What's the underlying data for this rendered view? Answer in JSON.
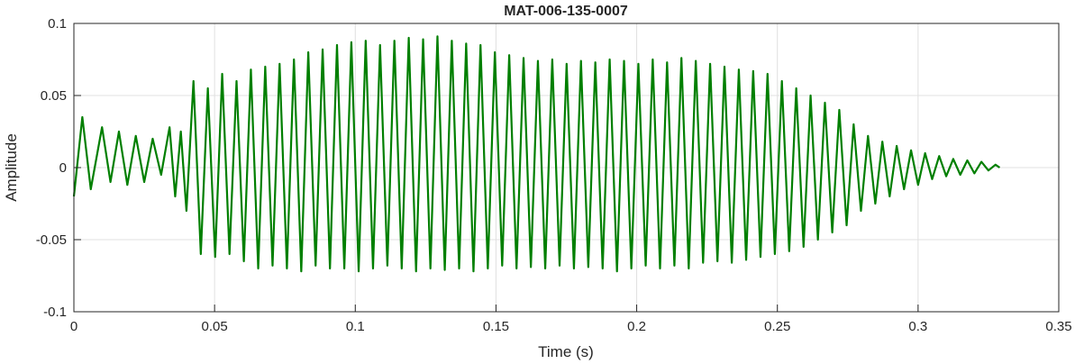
{
  "chart_data": {
    "type": "line",
    "title": "MAT-006-135-0007",
    "xlabel": "Time (s)",
    "ylabel": "Amplitude",
    "color": "#007f00",
    "grid": true,
    "xlim": [
      0,
      0.35
    ],
    "xticks": [
      0,
      0.05,
      0.1,
      0.15,
      0.2,
      0.25,
      0.3,
      0.35
    ],
    "ylim": [
      -0.1,
      0.1
    ],
    "yticks": [
      -0.1,
      -0.05,
      0,
      0.05,
      0.1
    ],
    "x": [
      0,
      0.003,
      0.006,
      0.01,
      0.013,
      0.016,
      0.019,
      0.022,
      0.025,
      0.028,
      0.031,
      0.034,
      0.036,
      0.038,
      0.04,
      0.0425,
      0.0451,
      0.0476,
      0.0502,
      0.0527,
      0.0553,
      0.0578,
      0.0604,
      0.0629,
      0.0655,
      0.068,
      0.0706,
      0.0731,
      0.0757,
      0.0782,
      0.0808,
      0.0833,
      0.0859,
      0.0884,
      0.091,
      0.0935,
      0.0961,
      0.0986,
      0.1012,
      0.1037,
      0.1063,
      0.1088,
      0.1114,
      0.1139,
      0.1165,
      0.119,
      0.1216,
      0.1241,
      0.1267,
      0.1292,
      0.1318,
      0.1343,
      0.1369,
      0.1394,
      0.142,
      0.1445,
      0.1471,
      0.1496,
      0.1522,
      0.1547,
      0.1573,
      0.1598,
      0.1624,
      0.1649,
      0.1675,
      0.17,
      0.1726,
      0.1751,
      0.1777,
      0.1802,
      0.1828,
      0.1853,
      0.1879,
      0.1904,
      0.193,
      0.1955,
      0.1981,
      0.2006,
      0.2032,
      0.2057,
      0.2083,
      0.2108,
      0.2134,
      0.2159,
      0.2185,
      0.221,
      0.2236,
      0.2261,
      0.2287,
      0.2312,
      0.2338,
      0.2363,
      0.2389,
      0.2414,
      0.244,
      0.2465,
      0.2491,
      0.2516,
      0.2542,
      0.2567,
      0.2593,
      0.2618,
      0.2644,
      0.2669,
      0.2695,
      0.272,
      0.2746,
      0.2771,
      0.2797,
      0.2822,
      0.2848,
      0.2873,
      0.2899,
      0.2924,
      0.295,
      0.2975,
      0.3,
      0.3025,
      0.305,
      0.3075,
      0.31,
      0.3125,
      0.315,
      0.3175,
      0.32,
      0.3225,
      0.325,
      0.3275,
      0.329
    ],
    "values": [
      -0.02,
      0.035,
      -0.015,
      0.028,
      -0.01,
      0.025,
      -0.012,
      0.022,
      -0.01,
      0.02,
      -0.005,
      0.028,
      -0.02,
      0.025,
      -0.03,
      0.06,
      -0.06,
      0.055,
      -0.062,
      0.065,
      -0.06,
      0.06,
      -0.065,
      0.068,
      -0.07,
      0.07,
      -0.068,
      0.072,
      -0.07,
      0.075,
      -0.072,
      0.08,
      -0.068,
      0.082,
      -0.07,
      0.085,
      -0.07,
      0.087,
      -0.072,
      0.088,
      -0.07,
      0.085,
      -0.068,
      0.088,
      -0.07,
      0.09,
      -0.072,
      0.089,
      -0.07,
      0.091,
      -0.071,
      0.088,
      -0.07,
      0.086,
      -0.072,
      0.085,
      -0.07,
      0.08,
      -0.068,
      0.078,
      -0.07,
      0.076,
      -0.069,
      0.074,
      -0.07,
      0.075,
      -0.068,
      0.072,
      -0.07,
      0.074,
      -0.069,
      0.073,
      -0.07,
      0.075,
      -0.072,
      0.074,
      -0.07,
      0.072,
      -0.068,
      0.075,
      -0.07,
      0.073,
      -0.068,
      0.076,
      -0.07,
      0.074,
      -0.066,
      0.072,
      -0.065,
      0.07,
      -0.066,
      0.068,
      -0.064,
      0.067,
      -0.062,
      0.065,
      -0.06,
      0.06,
      -0.058,
      0.055,
      -0.055,
      0.05,
      -0.05,
      0.045,
      -0.045,
      0.04,
      -0.04,
      0.03,
      -0.03,
      0.022,
      -0.025,
      0.018,
      -0.02,
      0.015,
      -0.015,
      0.012,
      -0.012,
      0.01,
      -0.008,
      0.008,
      -0.006,
      0.006,
      -0.005,
      0.005,
      -0.004,
      0.004,
      -0.002,
      0.002,
      0
    ]
  }
}
